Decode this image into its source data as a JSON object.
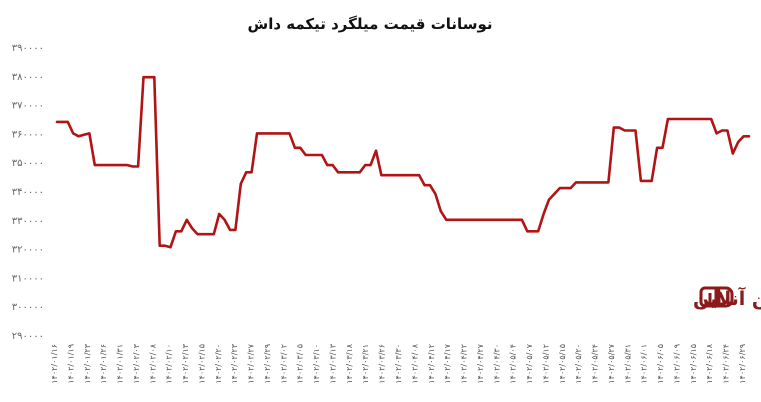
{
  "chart_data": {
    "type": "line",
    "title": "نوسانات قیمت میلگرد تیکمه داش",
    "xlabel": "",
    "ylabel": "",
    "ylim": [
      290000,
      390000
    ],
    "yticks": [
      {
        "value": 390000,
        "label": "۳۹۰۰۰۰"
      },
      {
        "value": 380000,
        "label": "۳۸۰۰۰۰"
      },
      {
        "value": 370000,
        "label": "۳۷۰۰۰۰"
      },
      {
        "value": 360000,
        "label": "۳۶۰۰۰۰"
      },
      {
        "value": 350000,
        "label": "۳۵۰۰۰۰"
      },
      {
        "value": 340000,
        "label": "۳۴۰۰۰۰"
      },
      {
        "value": 330000,
        "label": "۳۳۰۰۰۰"
      },
      {
        "value": 320000,
        "label": "۳۲۰۰۰۰"
      },
      {
        "value": 310000,
        "label": "۳۱۰۰۰۰"
      },
      {
        "value": 300000,
        "label": "۳۰۰۰۰۰"
      },
      {
        "value": 290000,
        "label": "۲۹۰۰۰۰"
      }
    ],
    "xtick_labels": [
      "۱۴۰۲/۰۱/۱۶",
      "۱۴۰۲/۰۱/۱۹",
      "۱۴۰۲/۰۱/۲۳",
      "۱۴۰۲/۰۱/۲۶",
      "۱۴۰۲/۰۱/۳۱",
      "۱۴۰۲/۰۲/۰۳",
      "۱۴۰۲/۰۲/۰۸",
      "۱۴۰۲/۰۲/۱۰",
      "۱۴۰۲/۰۲/۱۳",
      "۱۴۰۲/۰۲/۱۵",
      "۱۴۰۲/۰۲/۲۰",
      "۱۴۰۲/۰۲/۲۳",
      "۱۴۰۲/۰۲/۲۷",
      "۱۴۰۲/۰۲/۲۹",
      "۱۴۰۲/۰۳/۰۲",
      "۱۴۰۲/۰۳/۰۵",
      "۱۴۰۲/۰۳/۱۰",
      "۱۴۰۲/۰۳/۱۳",
      "۱۴۰۲/۰۳/۱۸",
      "۱۴۰۲/۰۳/۲۱",
      "۱۴۰۲/۰۳/۲۶",
      "۱۴۰۲/۰۳/۳۰",
      "۱۴۰۲/۰۴/۰۸",
      "۱۴۰۲/۰۴/۱۲",
      "۱۴۰۲/۰۴/۱۷",
      "۱۴۰۲/۰۴/۲۲",
      "۱۴۰۲/۰۴/۲۷",
      "۱۴۰۲/۰۴/۳۰",
      "۱۴۰۲/۰۵/۰۴",
      "۱۴۰۲/۰۵/۰۷",
      "۱۴۰۲/۰۵/۱۲",
      "۱۴۰۲/۰۵/۱۵",
      "۱۴۰۲/۰۵/۲۰",
      "۱۴۰۲/۰۵/۲۴",
      "۱۴۰۲/۰۵/۲۷",
      "۱۴۰۲/۰۵/۳۱",
      "۱۴۰۲/۰۶/۰۱",
      "۱۴۰۲/۰۶/۰۵",
      "۱۴۰۲/۰۶/۰۹",
      "۱۴۰۲/۰۶/۱۵",
      "۱۴۰۲/۰۶/۱۸",
      "۱۴۰۲/۰۶/۲۴",
      "۱۴۰۲/۰۶/۲۹"
    ],
    "series": [
      {
        "color": "#b01414",
        "values": [
          364000,
          364000,
          364000,
          360000,
          359000,
          359500,
          360000,
          349000,
          349000,
          349000,
          349000,
          349000,
          349000,
          349000,
          348500,
          348500,
          379500,
          379500,
          379500,
          321000,
          321000,
          320500,
          326000,
          326000,
          330000,
          327000,
          325000,
          325000,
          325000,
          325000,
          332000,
          330000,
          326500,
          326500,
          342500,
          346500,
          346500,
          360000,
          360000,
          360000,
          360000,
          360000,
          360000,
          360000,
          355000,
          355000,
          352500,
          352500,
          352500,
          352500,
          349000,
          349000,
          346500,
          346500,
          346500,
          346500,
          346500,
          349000,
          349000,
          354000,
          345500,
          345500,
          345500,
          345500,
          345500,
          345500,
          345500,
          345500,
          342000,
          342000,
          339000,
          333000,
          330000,
          330000,
          330000,
          330000,
          330000,
          330000,
          330000,
          330000,
          330000,
          330000,
          330000,
          330000,
          330000,
          330000,
          330000,
          326000,
          326000,
          326000,
          332000,
          337000,
          339000,
          341000,
          341000,
          341000,
          343000,
          343000,
          343000,
          343000,
          343000,
          343000,
          343000,
          362000,
          362000,
          361000,
          361000,
          361000,
          343500,
          343500,
          343500,
          355000,
          355000,
          365000,
          365000,
          365000,
          365000,
          365000,
          365000,
          365000,
          365000,
          365000,
          360000,
          361000,
          361000,
          353000,
          357000,
          359000,
          359000
        ]
      }
    ]
  },
  "logo": {
    "text": "آهن آنلاین",
    "mark": "AD",
    "color": "#8b1a1a"
  }
}
